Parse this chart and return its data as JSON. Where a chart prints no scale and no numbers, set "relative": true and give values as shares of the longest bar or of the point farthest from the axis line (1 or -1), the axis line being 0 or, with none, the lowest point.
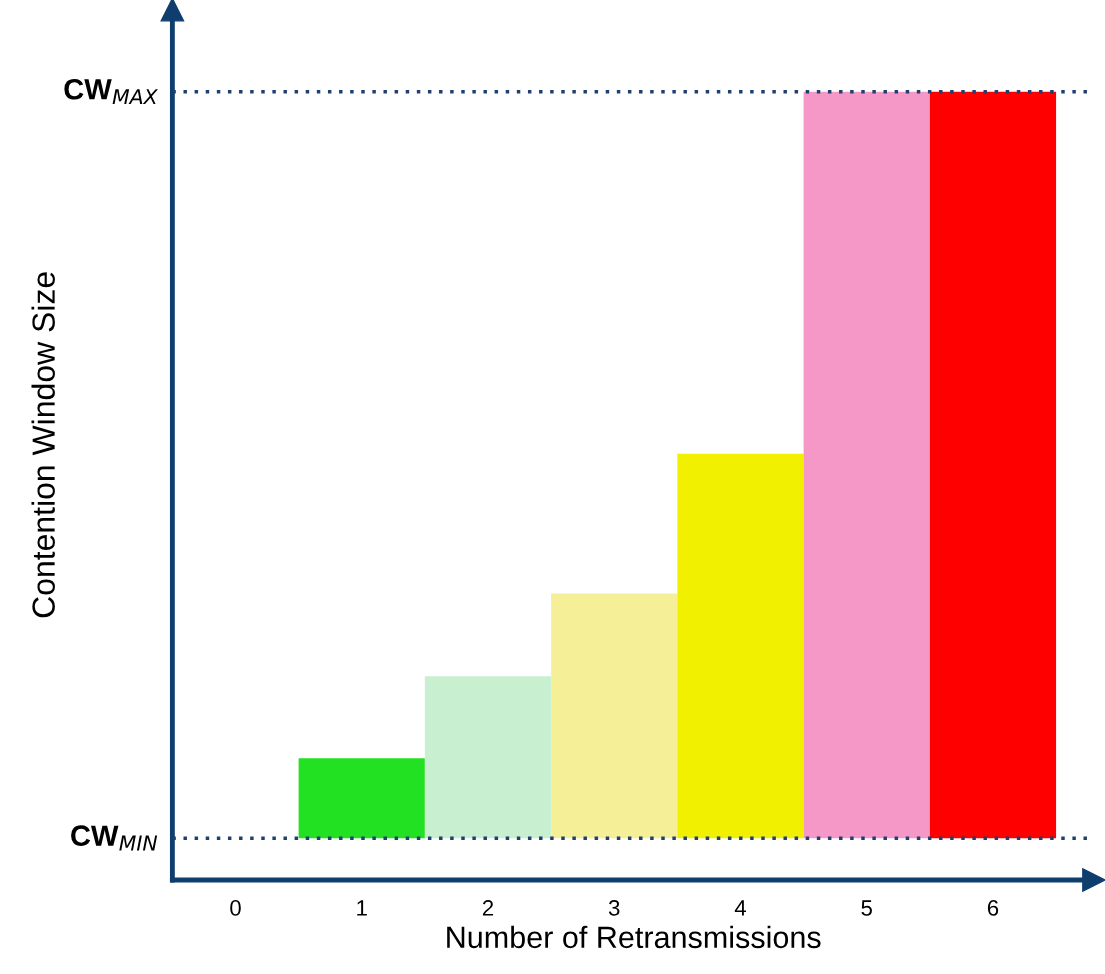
{
  "chart_data": {
    "type": "bar",
    "relative": true,
    "xlabel": "Number of Retransmissions",
    "ylabel": "Contention Window Size",
    "categories": [
      "0",
      "1",
      "2",
      "3",
      "4",
      "5",
      "6"
    ],
    "values": [
      null,
      0.107,
      0.217,
      0.328,
      0.515,
      1.0,
      1.0
    ],
    "colors": [
      "#ffffff",
      "#22e022",
      "#c8f0d0",
      "#f5f098",
      "#f0f000",
      "#f598c8",
      "#ff0000"
    ],
    "ref_lines": [
      {
        "axis": "y",
        "value": 0,
        "label": "CW$_{MIN}$",
        "color": "#1f3f6f",
        "line_style": "dotted"
      },
      {
        "axis": "y",
        "value": 1.0,
        "label": "CW$_{MAX}$",
        "color": "#1f3f6f",
        "line_style": "dotted"
      }
    ],
    "legend": false
  }
}
